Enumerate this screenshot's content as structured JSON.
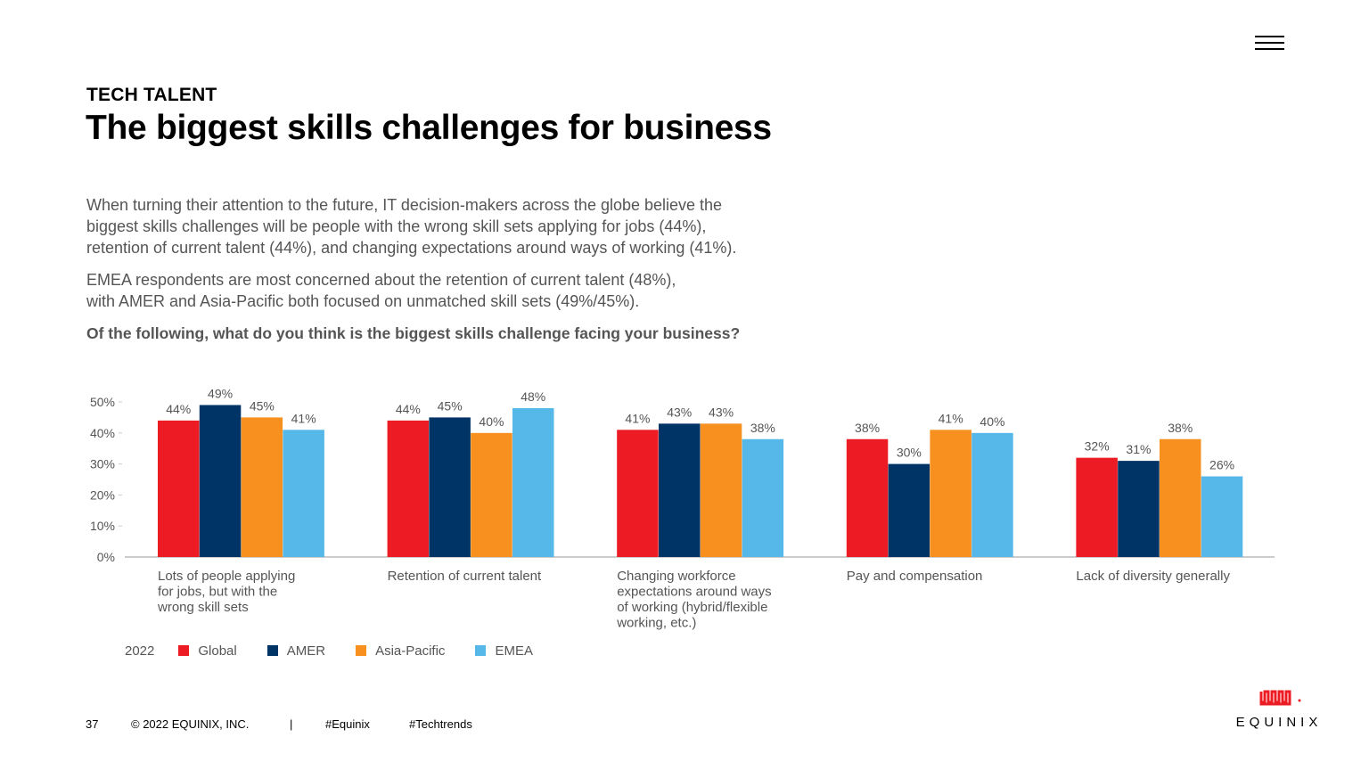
{
  "header": {
    "kicker": "TECH TALENT",
    "title": "The biggest skills challenges for business"
  },
  "body": {
    "paragraph1": [
      "When turning their attention to the future, IT decision-makers across the globe believe the",
      "biggest skills challenges will be people with the wrong skill sets applying for jobs (44%),",
      "retention of current talent (44%), and changing expectations around ways of working (41%)."
    ],
    "paragraph2": [
      "EMEA respondents are most concerned about the retention of current talent (48%),",
      "with AMER and Asia-Pacific both focused on unmatched skill sets (49%/45%)."
    ],
    "question": "Of the following, what do you think is the biggest skills challenge facing your business?"
  },
  "chart_data": {
    "type": "bar",
    "categories": [
      [
        "Lots of people applying",
        "for jobs, but with the",
        "wrong skill sets"
      ],
      [
        "Retention of current talent"
      ],
      [
        "Changing workforce",
        "expectations around ways",
        "of working (hybrid/flexible",
        "working, etc.)"
      ],
      [
        "Pay and compensation"
      ],
      [
        "Lack of diversity generally"
      ]
    ],
    "series": [
      {
        "name": "Global",
        "color": "#ed1c24",
        "values": [
          44,
          44,
          41,
          38,
          32
        ]
      },
      {
        "name": "AMER",
        "color": "#003366",
        "values": [
          49,
          45,
          43,
          30,
          31
        ]
      },
      {
        "name": "Asia-Pacific",
        "color": "#f7901e",
        "values": [
          45,
          40,
          43,
          41,
          38
        ]
      },
      {
        "name": "EMEA",
        "color": "#55b8e8",
        "values": [
          41,
          48,
          38,
          40,
          26
        ]
      }
    ],
    "yticks": [
      "0%",
      "10%",
      "20%",
      "30%",
      "40%",
      "50%"
    ],
    "ylim": [
      0,
      50
    ],
    "value_suffix": "%",
    "legend_title": "2022",
    "legend_position": "bottom-left",
    "grid": false
  },
  "footer": {
    "page_number": "37",
    "copyright": "© 2022 EQUINIX, INC.",
    "separator": "|",
    "hashtag1": "#Equinix",
    "hashtag2": "#Techtrends"
  },
  "logo": {
    "text": "EQUINIX"
  },
  "colors": {
    "logo_red": "#ed1c24",
    "text_gray": "#555555"
  }
}
